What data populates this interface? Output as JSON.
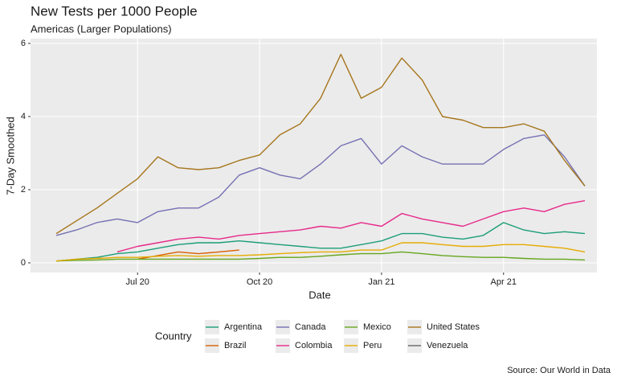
{
  "chart_data": {
    "type": "line",
    "title": "New Tests per 1000 People",
    "subtitle": "Americas (Larger Populations)",
    "x_label": "Date",
    "y_label": "7-Day Smoothed",
    "caption": "Source:  Our World in Data",
    "legend_title": "Country",
    "legend_position": "bottom",
    "grid": true,
    "x": [
      null,
      null,
      null,
      null,
      "Jul 20",
      null,
      null,
      null,
      null,
      null,
      "Oct 20",
      null,
      null,
      null,
      null,
      null,
      "Jan 21",
      null,
      null,
      null,
      null,
      null,
      "Apr 21",
      null,
      null,
      null,
      null
    ],
    "ylim": [
      0,
      6
    ],
    "yticks": [
      0,
      2,
      4,
      6
    ],
    "series": [
      {
        "name": "Argentina",
        "color": "#1b9e77",
        "values": [
          0.05,
          0.1,
          0.15,
          0.25,
          0.3,
          0.4,
          0.5,
          0.55,
          0.55,
          0.6,
          0.55,
          0.5,
          0.45,
          0.4,
          0.4,
          0.5,
          0.6,
          0.8,
          0.8,
          0.7,
          0.65,
          0.75,
          1.1,
          0.9,
          0.8,
          0.85,
          0.8
        ]
      },
      {
        "name": "Brazil",
        "color": "#d95f02",
        "values": [
          null,
          null,
          null,
          null,
          0.1,
          0.2,
          0.3,
          0.25,
          0.3,
          0.35,
          null,
          null,
          null,
          null,
          null,
          null,
          null,
          null,
          null,
          null,
          null,
          null,
          null,
          null,
          null,
          null,
          null
        ]
      },
      {
        "name": "Canada",
        "color": "#7570b3",
        "values": [
          0.75,
          0.9,
          1.1,
          1.2,
          1.1,
          1.4,
          1.5,
          1.5,
          1.8,
          2.4,
          2.6,
          2.4,
          2.3,
          2.7,
          3.2,
          3.4,
          2.7,
          3.2,
          2.9,
          2.7,
          2.7,
          2.7,
          3.1,
          3.4,
          3.5,
          2.9,
          2.1
        ]
      },
      {
        "name": "Colombia",
        "color": "#e7298a",
        "values": [
          null,
          null,
          null,
          0.3,
          0.45,
          0.55,
          0.65,
          0.7,
          0.65,
          0.75,
          0.8,
          0.85,
          0.9,
          1.0,
          0.95,
          1.1,
          1.0,
          1.35,
          1.2,
          1.1,
          1.0,
          1.2,
          1.4,
          1.5,
          1.4,
          1.6,
          1.7
        ]
      },
      {
        "name": "Mexico",
        "color": "#66a61e",
        "values": [
          0.05,
          0.07,
          0.08,
          0.1,
          0.1,
          0.1,
          0.1,
          0.1,
          0.1,
          0.1,
          0.12,
          0.15,
          0.15,
          0.18,
          0.22,
          0.25,
          0.25,
          0.3,
          0.25,
          0.2,
          0.17,
          0.15,
          0.15,
          0.12,
          0.1,
          0.1,
          0.08
        ]
      },
      {
        "name": "Peru",
        "color": "#e6ab02",
        "values": [
          0.05,
          0.1,
          0.12,
          0.15,
          0.15,
          0.18,
          0.2,
          0.18,
          0.2,
          0.2,
          0.22,
          0.25,
          0.28,
          0.3,
          0.3,
          0.35,
          0.35,
          0.55,
          0.55,
          0.5,
          0.45,
          0.45,
          0.5,
          0.5,
          0.45,
          0.4,
          0.3
        ]
      },
      {
        "name": "United States",
        "color": "#a6761d",
        "values": [
          0.8,
          1.15,
          1.5,
          1.9,
          2.3,
          2.9,
          2.6,
          2.55,
          2.6,
          2.8,
          2.95,
          3.5,
          3.8,
          4.5,
          5.7,
          4.5,
          4.8,
          5.6,
          5.0,
          4.0,
          3.9,
          3.7,
          3.7,
          3.8,
          3.6,
          2.8,
          2.1
        ]
      },
      {
        "name": "Venezuela",
        "color": "#666666",
        "values": [
          null,
          null,
          null,
          null,
          null,
          null,
          null,
          null,
          null,
          null,
          null,
          null,
          null,
          null,
          null,
          null,
          null,
          null,
          null,
          null,
          null,
          null,
          null,
          null,
          null,
          null,
          null
        ]
      }
    ]
  }
}
